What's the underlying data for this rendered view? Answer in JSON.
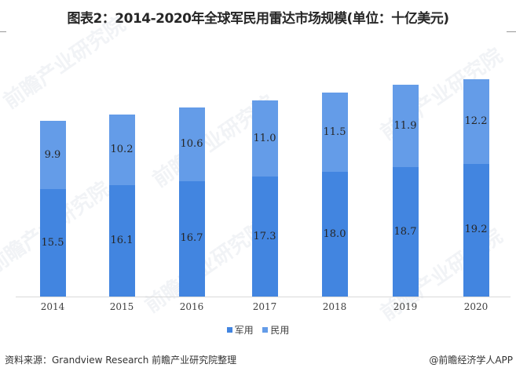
{
  "title": "图表2：2014-2020年全球军民用雷达市场规模(单位：十亿美元)",
  "colors": {
    "military": "#4285e0",
    "civilian": "#649ce8"
  },
  "legend": [
    {
      "label": "军用",
      "color": "#4285e0"
    },
    {
      "label": "民用",
      "color": "#649ce8"
    }
  ],
  "footer": {
    "source": "资料来源：Grandview Research 前瞻产业研究院整理",
    "credit": "@前瞻经济学人APP"
  },
  "watermark": "前瞻产业研究院",
  "chart_data": {
    "type": "bar",
    "stacked": true,
    "title": "图表2：2014-2020年全球军民用雷达市场规模(单位：十亿美元)",
    "xlabel": "",
    "ylabel": "",
    "unit": "十亿美元",
    "categories": [
      "2014",
      "2015",
      "2016",
      "2017",
      "2018",
      "2019",
      "2020"
    ],
    "series": [
      {
        "name": "军用",
        "color": "#4285e0",
        "values": [
          15.5,
          16.1,
          16.7,
          17.3,
          18.0,
          18.7,
          19.2
        ],
        "labels": [
          "15.5",
          "16.1",
          "16.7",
          "17.3",
          "18.0",
          "18.7",
          "19.2"
        ]
      },
      {
        "name": "民用",
        "color": "#649ce8",
        "values": [
          9.9,
          10.2,
          10.6,
          11.0,
          11.5,
          11.9,
          12.2
        ],
        "labels": [
          "9.9",
          "10.2",
          "10.6",
          "11.0",
          "11.5",
          "11.9",
          "12.2"
        ]
      }
    ],
    "ylim": [
      0,
      36
    ],
    "grid": false,
    "legend_position": "bottom"
  }
}
